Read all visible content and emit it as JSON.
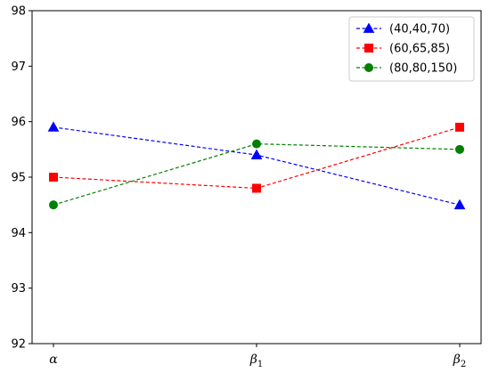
{
  "chart_data": {
    "type": "line",
    "title": "",
    "xlabel": "",
    "ylabel": "",
    "categories": [
      {
        "base": "α",
        "sub": ""
      },
      {
        "base": "β",
        "sub": "1"
      },
      {
        "base": "β",
        "sub": "2"
      }
    ],
    "ylim": [
      92,
      98
    ],
    "yticks": [
      92,
      93,
      94,
      95,
      96,
      97,
      98
    ],
    "grid": false,
    "legend_position": "top-right",
    "series": [
      {
        "name": "(40,40,70)",
        "values": [
          95.9,
          95.4,
          94.5
        ],
        "color": "#0000ff",
        "marker": "triangle",
        "linestyle": "dashed"
      },
      {
        "name": "(60,65,85)",
        "values": [
          95.0,
          94.8,
          95.9
        ],
        "color": "#ff0000",
        "marker": "square",
        "linestyle": "dashed"
      },
      {
        "name": "(80,80,150)",
        "values": [
          94.5,
          95.6,
          95.5
        ],
        "color": "#008000",
        "marker": "circle",
        "linestyle": "dashed"
      }
    ]
  }
}
